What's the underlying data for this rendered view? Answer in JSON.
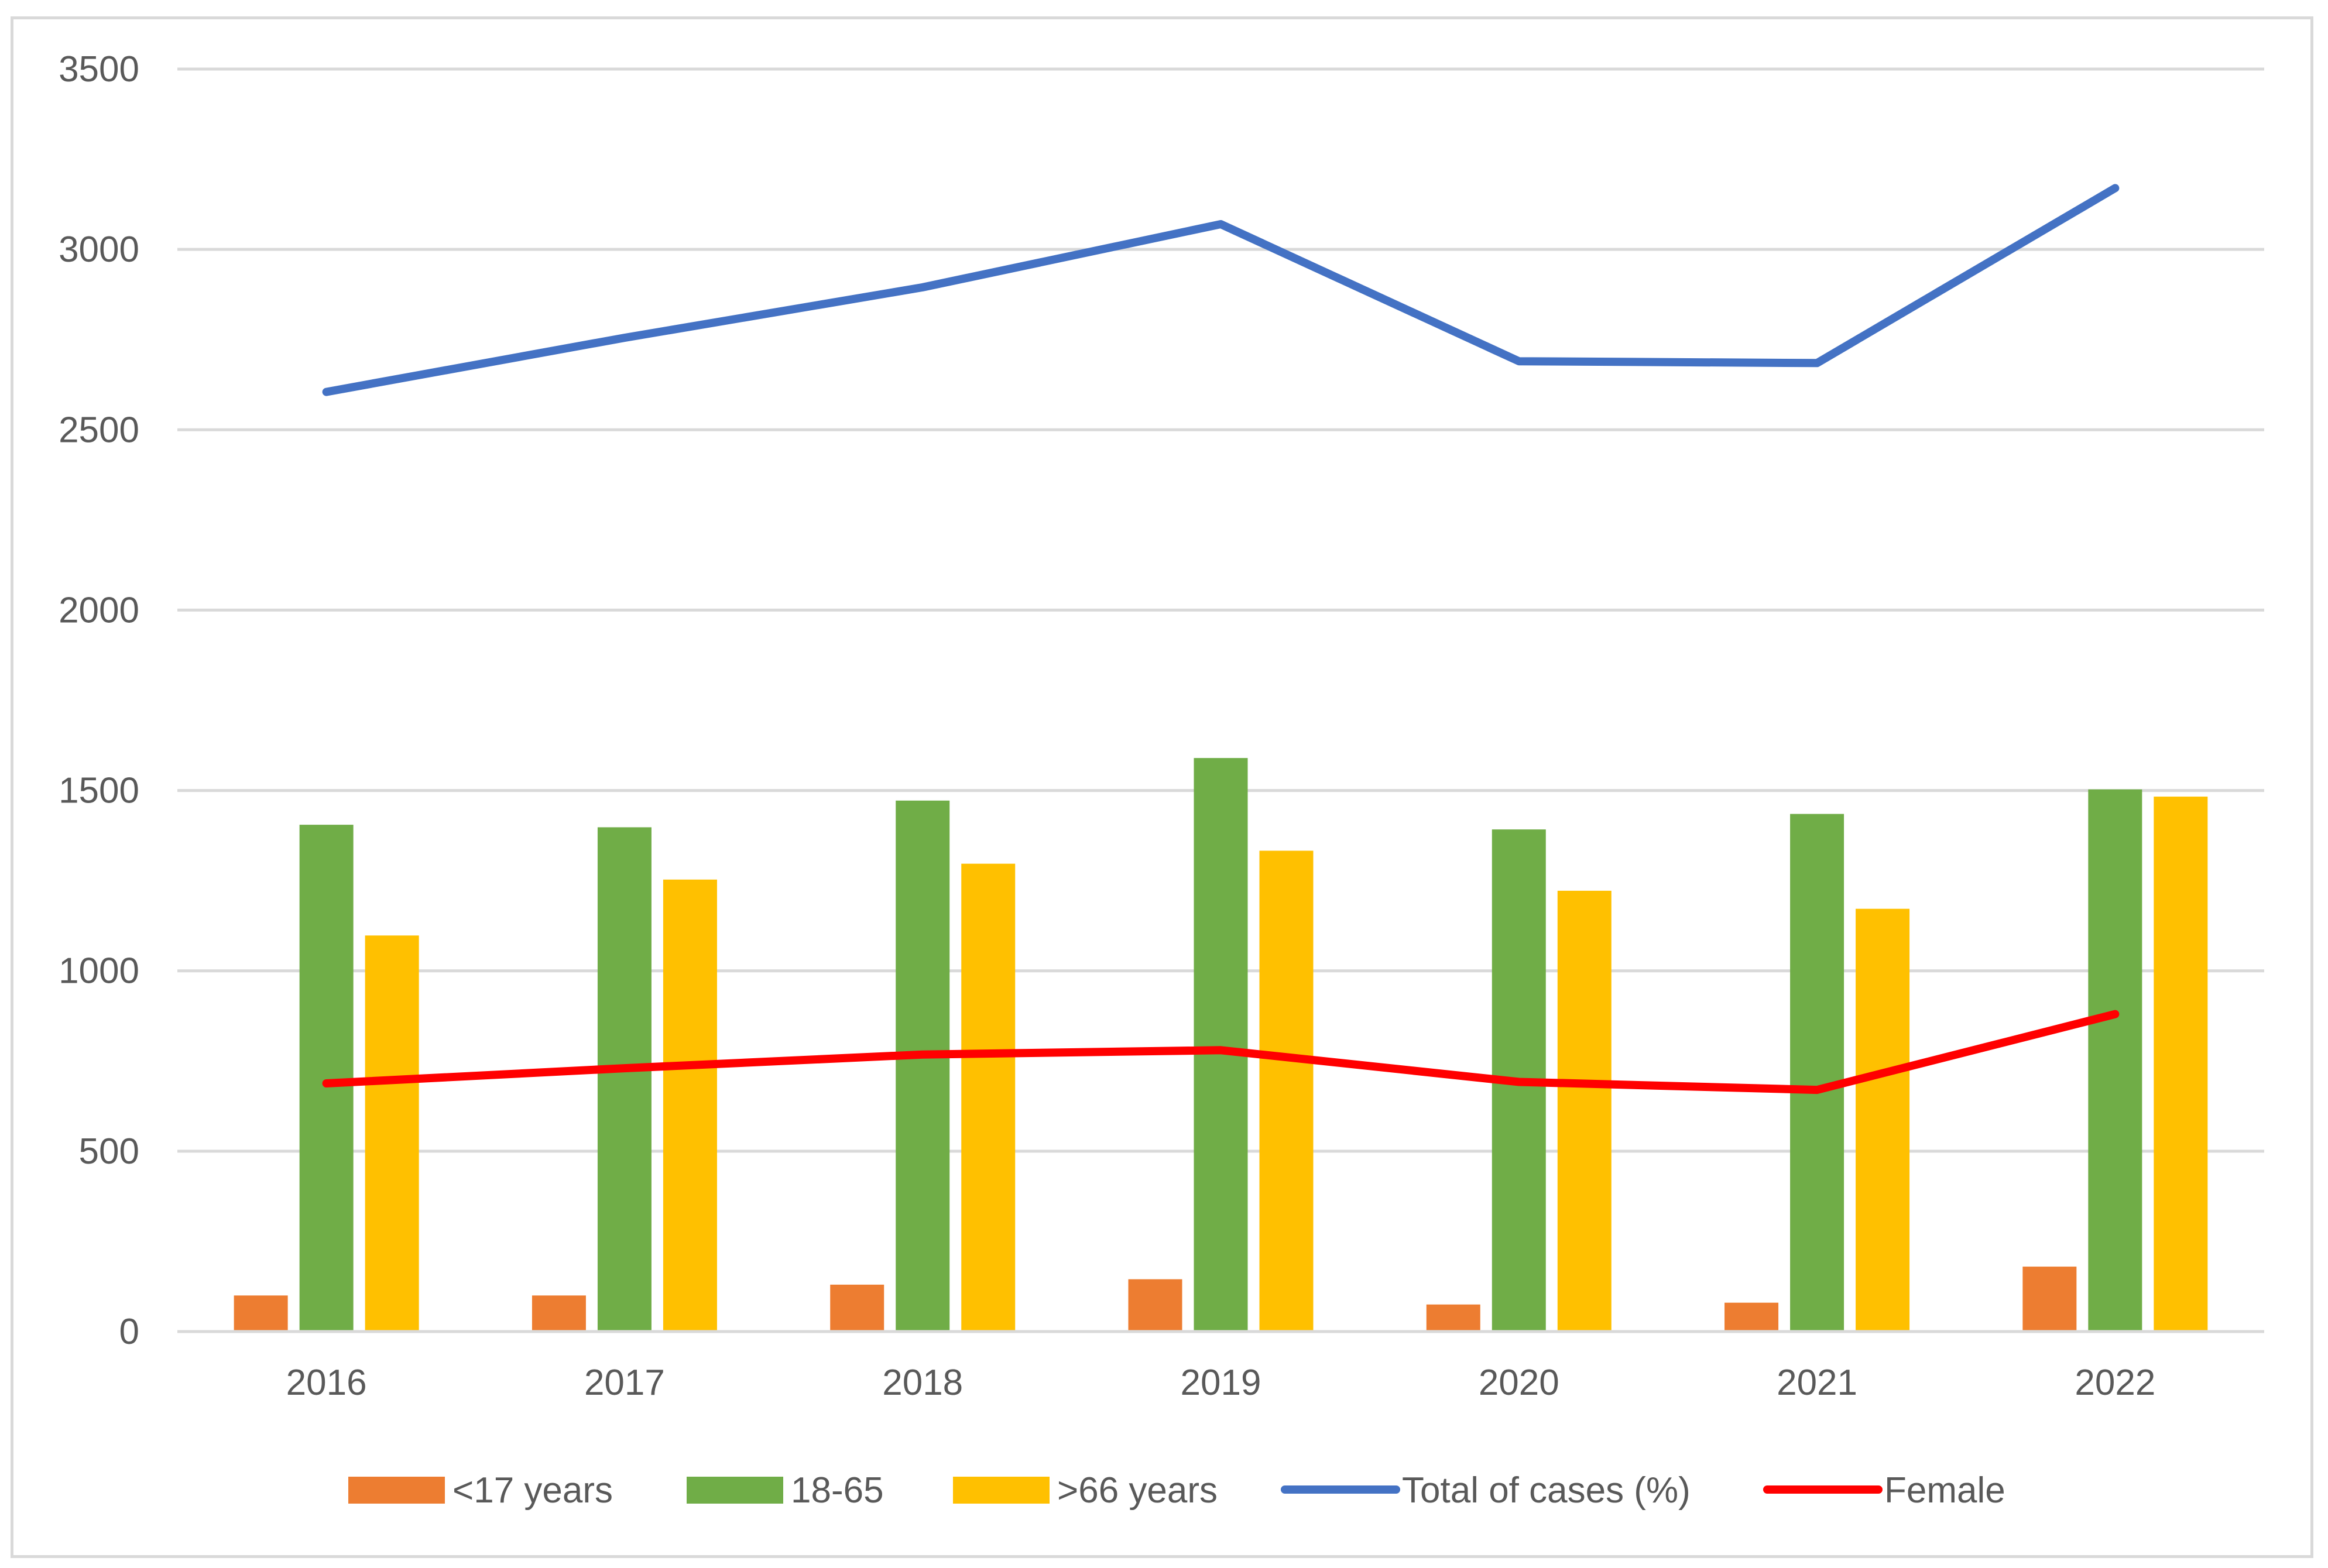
{
  "chart_data": {
    "type": "bar",
    "title": "",
    "xlabel": "",
    "ylabel": "",
    "ylim": [
      0,
      3500
    ],
    "yticks": [
      0,
      500,
      1000,
      1500,
      2000,
      2500,
      3000,
      3500
    ],
    "ytick_labels": [
      "0",
      "500",
      "1000",
      "1500",
      "2000",
      "2500",
      "3000",
      "3500"
    ],
    "grid": true,
    "legend_position": "bottom",
    "categories": [
      "2016",
      "2017",
      "2018",
      "2019",
      "2020",
      "2021",
      "2022"
    ],
    "bar_series": [
      {
        "name": "<17 years",
        "color": "#ed7d31",
        "values": [
          100,
          100,
          130,
          145,
          75,
          80,
          180
        ]
      },
      {
        "name": "18-65",
        "color": "#70ad47",
        "values": [
          1405,
          1398,
          1472,
          1590,
          1392,
          1435,
          1503
        ]
      },
      {
        "name": ">66 years",
        "color": "#ffc000",
        "values": [
          1098,
          1253,
          1297,
          1333,
          1222,
          1172,
          1483
        ]
      }
    ],
    "line_series": [
      {
        "name": "Total of cases (%)",
        "color": "#4472c4",
        "values": [
          2605,
          2755,
          2895,
          3070,
          2690,
          2685,
          3170
        ]
      },
      {
        "name": "Female",
        "color": "#ff0000",
        "values": [
          688,
          730,
          768,
          780,
          692,
          670,
          880
        ]
      }
    ]
  }
}
